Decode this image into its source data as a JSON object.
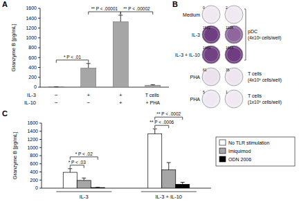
{
  "panel_labels": [
    "A",
    "B",
    "C"
  ],
  "chart_data": [
    {
      "type": "bar",
      "ylabel": "Granzyme B [pg/mL]",
      "categories": [
        null,
        null,
        null,
        "T cells + PHA"
      ],
      "condition_rows": [
        {
          "label": "IL-3",
          "marks": [
            "−",
            "+",
            "+",
            null
          ]
        },
        {
          "label": "IL-10",
          "marks": [
            "−",
            "−",
            "+",
            null
          ]
        }
      ],
      "values": [
        5,
        390,
        1330,
        40
      ],
      "errors": [
        3,
        90,
        130,
        10
      ],
      "color": "#a6a6a6",
      "ylim": [
        0,
        1600
      ],
      "yticks": [
        0,
        200,
        400,
        600,
        800,
        1000,
        1200,
        1400,
        1600
      ],
      "annotations": [
        {
          "text": "* P < .01",
          "between": [
            0,
            1
          ]
        },
        {
          "text": "** P < .00001",
          "between": [
            1,
            2
          ]
        },
        {
          "text": "** P < .00002",
          "between": [
            2,
            3
          ]
        }
      ]
    },
    {
      "type": "bar",
      "ylabel": "Granzyme B [pg/mL]",
      "categories": [
        "IL-3",
        "IL-3 + IL-10"
      ],
      "series": [
        {
          "name": "No TLR stimulation",
          "color": "#ffffff",
          "values": [
            390,
            1340
          ],
          "errors": [
            90,
            120
          ]
        },
        {
          "name": "Imiquimod",
          "color": "#a6a6a6",
          "values": [
            190,
            450
          ],
          "errors": [
            60,
            180
          ]
        },
        {
          "name": "ODN 2006",
          "color": "#000000",
          "values": [
            15,
            95
          ],
          "errors": [
            5,
            50
          ]
        }
      ],
      "legend": "right",
      "ylim": [
        0,
        1600
      ],
      "yticks": [
        0,
        200,
        400,
        600,
        800,
        1000,
        1200,
        1400,
        1600
      ],
      "annotations": [
        {
          "text": "* P < .03",
          "category": 0,
          "between": [
            0,
            1
          ]
        },
        {
          "text": "* P < .02",
          "category": 0,
          "between": [
            0,
            2
          ]
        },
        {
          "text": "** P < .0006",
          "category": 1,
          "between": [
            0,
            1
          ]
        },
        {
          "text": "** P < .0002",
          "category": 1,
          "between": [
            0,
            2
          ]
        }
      ]
    }
  ],
  "elispot": {
    "rows": [
      {
        "label": "Medium",
        "counts": [
          0,
          2
        ]
      },
      {
        "label": "IL-3",
        "counts": [
          1532,
          1128
        ]
      },
      {
        "label": "IL-3 + IL-10",
        "counts": [
          1469,
          1603
        ]
      },
      {
        "label": "PHA",
        "counts": [
          61,
          35
        ]
      },
      {
        "label": "PHA",
        "counts": [
          5,
          1
        ]
      }
    ],
    "groups": [
      {
        "name": "pDC",
        "note": "(4x10³ cells/well)",
        "rows": [
          0,
          2
        ]
      },
      {
        "name": "T cells",
        "note": "(4x10⁵ cells/well)",
        "rows": [
          3,
          3
        ]
      },
      {
        "name": "T cells",
        "note": "(1x10⁵ cells/well)",
        "rows": [
          4,
          4
        ]
      }
    ]
  }
}
